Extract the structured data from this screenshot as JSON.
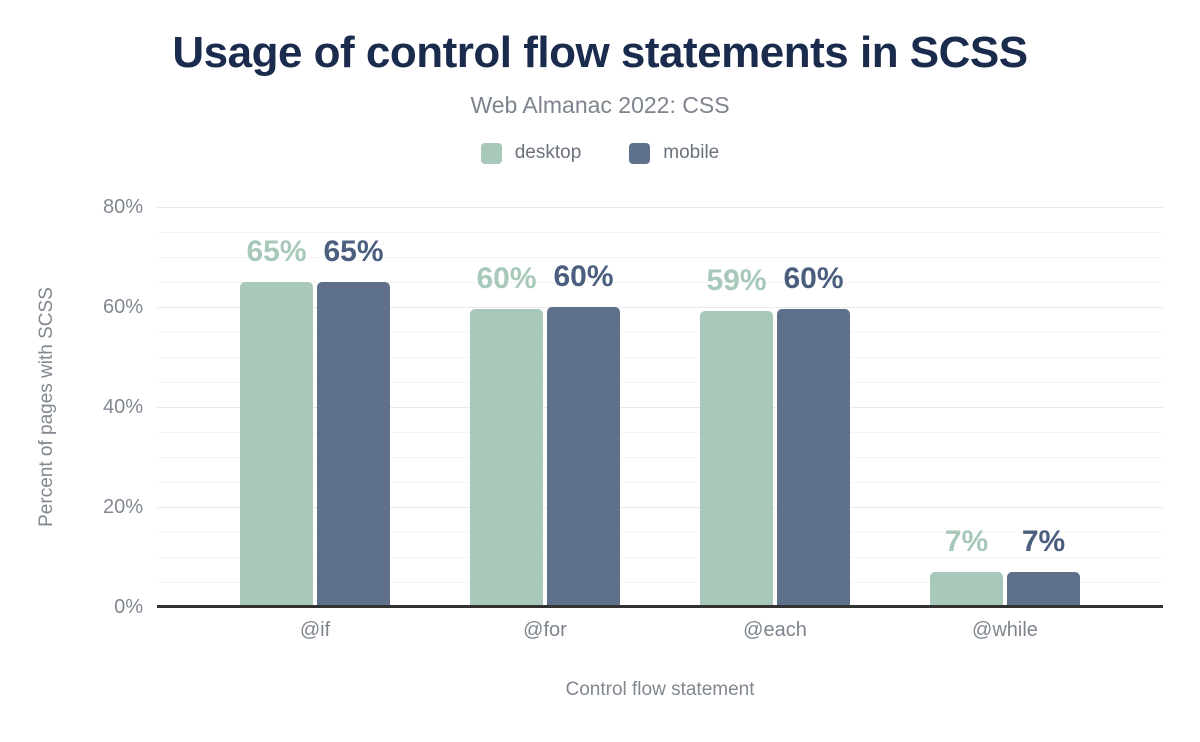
{
  "chart_data": {
    "type": "bar",
    "title": "Usage of control flow statements in SCSS",
    "subtitle": "Web Almanac 2022: CSS",
    "categories": [
      "@if",
      "@for",
      "@each",
      "@while"
    ],
    "series": [
      {
        "name": "desktop",
        "values": [
          65,
          59.7,
          59.2,
          7.1
        ],
        "labels": [
          "65%",
          "60%",
          "59%",
          "7%"
        ],
        "color": "#a8c9b9",
        "label_color": "#a8c9b9"
      },
      {
        "name": "mobile",
        "values": [
          65,
          60,
          59.7,
          7.1
        ],
        "labels": [
          "65%",
          "60%",
          "60%",
          "7%"
        ],
        "color": "#5f708b",
        "label_color": "#4b5e7e"
      }
    ],
    "xlabel": "Control flow statement",
    "ylabel": "Percent of pages with SCSS",
    "ylim": [
      0,
      80
    ],
    "yticks": [
      0,
      20,
      40,
      60,
      80
    ],
    "ytick_labels": [
      "0%",
      "20%",
      "40%",
      "60%",
      "80%"
    ],
    "minor_grid_step_pct": 5,
    "major_grid_step_pct": 20,
    "grid": true,
    "legend_position": "top"
  },
  "ui_colors": {
    "title": "#1b2b4d",
    "subtitle": "#7d848d",
    "legend_text": "#6b727c",
    "axis_text": "#818890",
    "grid_major": "#e9eaea",
    "grid_minor": "#f5f5f5",
    "baseline": "#323232",
    "background": "#ffffff"
  }
}
